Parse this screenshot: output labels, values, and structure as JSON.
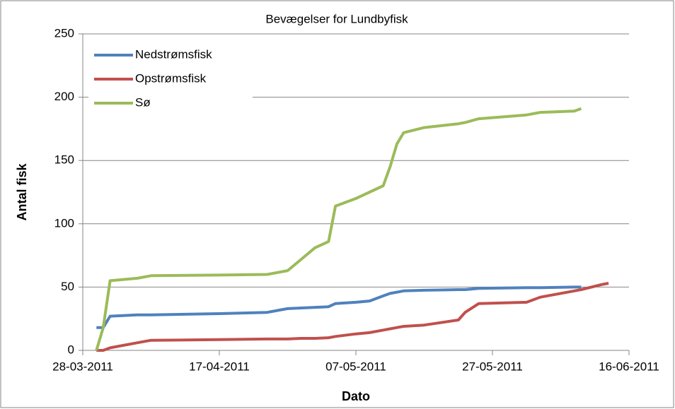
{
  "chart_data": {
    "type": "line",
    "title": "Bevægelser for Lundbyfisk",
    "x_label": "Dato",
    "y_label": "Antal fisk",
    "x": [
      "2011-03-30",
      "2011-03-31",
      "2011-04-01",
      "2011-04-05",
      "2011-04-07",
      "2011-04-17",
      "2011-04-24",
      "2011-04-27",
      "2011-04-29",
      "2011-05-01",
      "2011-05-03",
      "2011-05-04",
      "2011-05-07",
      "2011-05-09",
      "2011-05-11",
      "2011-05-12",
      "2011-05-13",
      "2011-05-14",
      "2011-05-17",
      "2011-05-22",
      "2011-05-23",
      "2011-05-25",
      "2011-06-01",
      "2011-06-03",
      "2011-06-08",
      "2011-06-09",
      "2011-06-12",
      "2011-06-13"
    ],
    "series": [
      {
        "name": "Nedstrømsfisk",
        "color": "#4f81bd",
        "values": [
          18,
          18,
          27,
          28,
          28,
          29,
          30,
          33,
          33.5,
          34,
          34.5,
          37,
          38,
          39,
          43,
          45,
          46,
          47,
          47.5,
          48,
          48,
          49,
          49.5,
          49.5,
          50,
          50,
          null,
          null
        ]
      },
      {
        "name": "Opstrømsfisk",
        "color": "#c0504d",
        "values": [
          0,
          0,
          2,
          6,
          8,
          8.5,
          9,
          9,
          9.5,
          9.5,
          10,
          11,
          13,
          14,
          16,
          17,
          18,
          19,
          20,
          24,
          30,
          37,
          38,
          42,
          47,
          48,
          52,
          53
        ]
      },
      {
        "name": "Sø",
        "color": "#9bbb59",
        "values": [
          0,
          18,
          55,
          57,
          59,
          59.5,
          60,
          63,
          72,
          81,
          86,
          114,
          120,
          125,
          130,
          145,
          163,
          172,
          176,
          179,
          180,
          183,
          186,
          188,
          189,
          191,
          null,
          null
        ]
      }
    ],
    "xlim": [
      "2011-03-28",
      "2011-06-16"
    ],
    "xticks": [
      {
        "value": "2011-03-28",
        "label": "28-03-2011"
      },
      {
        "value": "2011-04-17",
        "label": "17-04-2011"
      },
      {
        "value": "2011-05-07",
        "label": "07-05-2011"
      },
      {
        "value": "2011-05-27",
        "label": "27-05-2011"
      },
      {
        "value": "2011-06-16",
        "label": "16-06-2011"
      }
    ],
    "ylim": [
      0,
      250
    ],
    "yticks": [
      0,
      50,
      100,
      150,
      200,
      250
    ],
    "grid": true,
    "legend": "top-left"
  }
}
